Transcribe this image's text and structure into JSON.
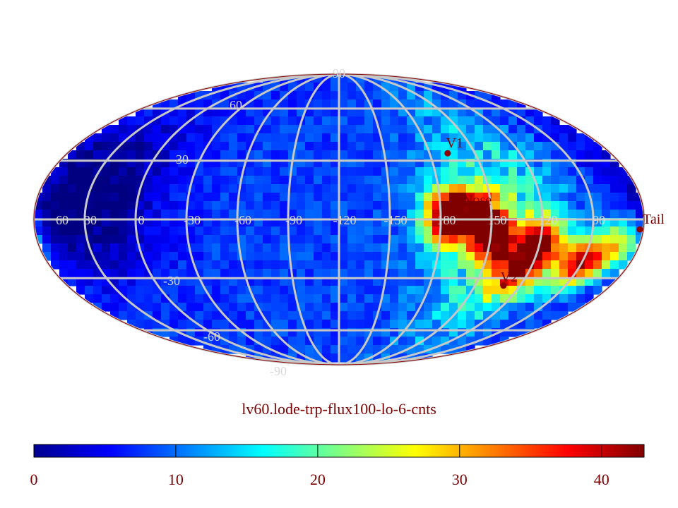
{
  "chart_data": {
    "type": "heatmap",
    "projection": "mollweide",
    "title": "lv60.lode-trp-flux100-lo-6-cnts",
    "colormap": "jet",
    "colorbar": {
      "range": [
        0,
        43
      ],
      "ticks": [
        0,
        10,
        20,
        30,
        40
      ],
      "tick_labels": [
        "0",
        "10",
        "20",
        "30",
        "40"
      ]
    },
    "graticule": {
      "latitude_labels": [
        "90",
        "60",
        "30",
        "0",
        "-30",
        "-60",
        "-90"
      ],
      "longitude_labels": [
        "60",
        "30",
        "0",
        "-30",
        "-60",
        "-90",
        "-120",
        "-150",
        "180",
        "150",
        "120",
        "90"
      ]
    },
    "markers": [
      {
        "label": "V1",
        "lon": 252,
        "lat": 34
      },
      {
        "label": "Nose",
        "lon": 255,
        "lat": 5
      },
      {
        "label": "V2",
        "lon": 289,
        "lat": -34
      },
      {
        "label": "Tail",
        "lon": 75,
        "lat": -5
      }
    ],
    "hotspots": [
      {
        "lon": -62,
        "lat": 1,
        "value": 40
      },
      {
        "lon": -74,
        "lat": 3,
        "value": 36
      },
      {
        "lon": -95,
        "lat": -10,
        "value": 38
      },
      {
        "lon": -122,
        "lat": -12,
        "value": 40
      },
      {
        "lon": -150,
        "lat": -22,
        "value": 42
      },
      {
        "lon": -112,
        "lat": -28,
        "value": 33
      },
      {
        "lon": -168,
        "lat": -12,
        "value": 30
      },
      {
        "lon": -85,
        "lat": 1,
        "value": 30
      }
    ],
    "background_value": 8,
    "ribbon_value": 18,
    "low_region": {
      "lon": 150,
      "lat": 12,
      "value": 1
    }
  }
}
